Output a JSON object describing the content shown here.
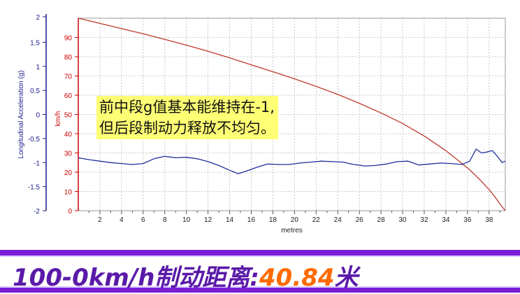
{
  "chart_data": {
    "type": "line",
    "xlabel": "metres",
    "xlim": [
      0,
      39.5
    ],
    "x_ticks": [
      2,
      4,
      6,
      8,
      10,
      12,
      14,
      16,
      18,
      20,
      22,
      24,
      26,
      28,
      30,
      32,
      34,
      36,
      38
    ],
    "y_left": {
      "label": "Longitudinal Acceleration (g)",
      "lim": [
        -2,
        2
      ],
      "ticks": [
        2,
        1.5,
        1,
        0.5,
        0,
        -0.5,
        -1,
        -1.5,
        -2
      ],
      "color": "#1c1c8c"
    },
    "y_right": {
      "label": "km/h",
      "lim": [
        0,
        100
      ],
      "ticks": [
        90,
        80,
        70,
        60,
        50,
        40,
        30,
        20,
        10,
        0
      ],
      "color": "#cc0000"
    },
    "series": [
      {
        "axis": "right",
        "color": "#c0392b",
        "x": [
          0,
          2,
          4,
          6,
          8,
          10,
          12,
          14,
          16,
          18,
          20,
          22,
          24,
          26,
          28,
          30,
          32,
          34,
          36,
          37,
          38,
          38.5,
          39,
          39.5
        ],
        "y": [
          100,
          97.3,
          94.6,
          91.9,
          89.0,
          86.0,
          82.8,
          79.4,
          75.8,
          72.2,
          68.5,
          64.6,
          60.4,
          55.8,
          50.8,
          45.3,
          38.8,
          31.2,
          22.2,
          17.0,
          11.0,
          7.5,
          3.5,
          0
        ]
      },
      {
        "axis": "left",
        "color": "#1f2f9a",
        "x": [
          0,
          1,
          2,
          3,
          4,
          5,
          6,
          7,
          8,
          9,
          10,
          11,
          12,
          13,
          14,
          14.8,
          15.5,
          16.5,
          17.5,
          18.5,
          19.5,
          20.5,
          21.5,
          22.5,
          23.5,
          24.5,
          25.5,
          26.5,
          27.5,
          28.5,
          29.5,
          30.5,
          31.5,
          32.5,
          33.5,
          34.5,
          35.5,
          36.2,
          36.8,
          37.3,
          37.8,
          38.3,
          38.8,
          39.2,
          39.5
        ],
        "y": [
          -0.9,
          -0.94,
          -0.97,
          -1.0,
          -1.02,
          -1.04,
          -1.02,
          -0.92,
          -0.87,
          -0.9,
          -0.89,
          -0.92,
          -0.98,
          -1.06,
          -1.16,
          -1.23,
          -1.18,
          -1.1,
          -1.03,
          -1.04,
          -1.04,
          -1.01,
          -0.99,
          -0.97,
          -0.98,
          -0.99,
          -1.04,
          -1.07,
          -1.06,
          -1.03,
          -0.98,
          -0.97,
          -1.05,
          -1.03,
          -1.01,
          -1.02,
          -1.04,
          -0.97,
          -0.72,
          -0.8,
          -0.78,
          -0.75,
          -0.88,
          -1.0,
          -0.97
        ]
      }
    ]
  },
  "annotation": {
    "line1": "前中段g值基本能维持在-1,",
    "line2": "但后段制动力释放不均匀。"
  },
  "banner": {
    "label": "100-0km/h制动距离:",
    "value": "40.84",
    "unit": "米",
    "colors": {
      "background": "#7a1ed6",
      "label": "#5a1aa8",
      "value": "#ff6a00"
    }
  }
}
